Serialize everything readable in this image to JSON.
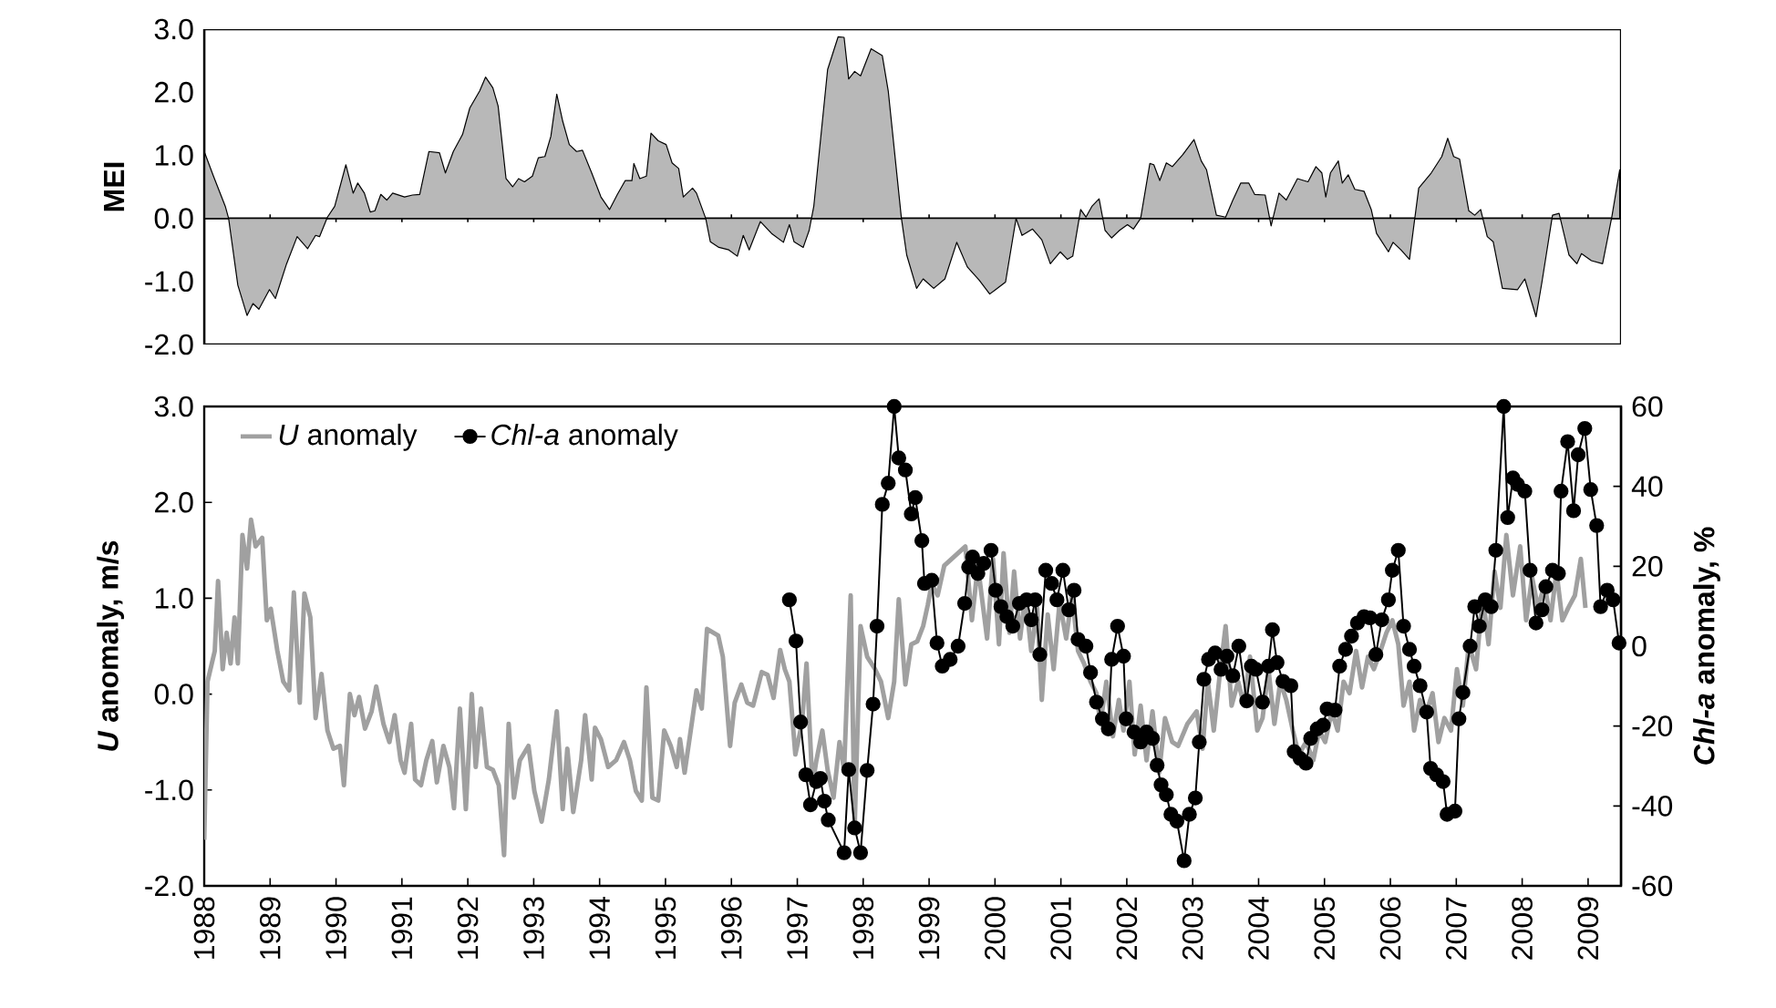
{
  "chart_data": [
    {
      "type": "area",
      "ylabel": "MEI",
      "color": "#b8b8b8",
      "xlim": [
        1988,
        2009.5
      ],
      "xticks": [
        1988,
        1989,
        1990,
        1991,
        1992,
        1993,
        1994,
        1995,
        1996,
        1997,
        1998,
        1999,
        2000,
        2001,
        2002,
        2003,
        2004,
        2005,
        2006,
        2007,
        2008,
        2009
      ],
      "tick_labels": "y",
      "ylim": [
        -2,
        3
      ],
      "yticks": [
        {
          "value": -2,
          "label": "-2.0"
        },
        {
          "value": -1,
          "label": "-1.0"
        },
        {
          "value": 0,
          "label": "0.0"
        },
        {
          "value": 1,
          "label": "1.0"
        },
        {
          "value": 2,
          "label": "2.0"
        },
        {
          "value": 3,
          "label": "3.0"
        }
      ],
      "x": [
        1988.0,
        1988.14,
        1988.32,
        1988.37,
        1988.51,
        1988.65,
        1988.74,
        1988.83,
        1988.99,
        1989.08,
        1989.25,
        1989.41,
        1989.57,
        1989.69,
        1989.75,
        1989.87,
        1989.98,
        1990.15,
        1990.26,
        1990.33,
        1990.43,
        1990.52,
        1990.59,
        1990.68,
        1990.77,
        1990.86,
        1991.04,
        1991.16,
        1991.27,
        1991.41,
        1991.57,
        1991.66,
        1991.78,
        1991.92,
        1992.03,
        1992.18,
        1992.27,
        1992.38,
        1992.46,
        1992.58,
        1992.68,
        1992.77,
        1992.86,
        1992.98,
        1993.07,
        1993.17,
        1993.26,
        1993.35,
        1993.44,
        1993.54,
        1993.65,
        1993.74,
        1993.88,
        1994.02,
        1994.15,
        1994.27,
        1994.39,
        1994.49,
        1994.52,
        1994.61,
        1994.71,
        1994.78,
        1994.89,
        1995.01,
        1995.1,
        1995.2,
        1995.27,
        1995.41,
        1995.47,
        1995.61,
        1995.68,
        1995.81,
        1995.96,
        1996.09,
        1996.18,
        1996.27,
        1996.44,
        1996.61,
        1996.79,
        1996.88,
        1996.95,
        1997.09,
        1997.18,
        1997.25,
        1997.46,
        1997.62,
        1997.71,
        1997.78,
        1997.87,
        1997.96,
        1998.12,
        1998.29,
        1998.38,
        1998.58,
        1998.66,
        1998.81,
        1998.91,
        1999.07,
        1999.24,
        1999.42,
        1999.58,
        1999.76,
        1999.92,
        2000.01,
        2000.16,
        2000.32,
        2000.41,
        2000.57,
        2000.71,
        2000.84,
        2000.99,
        2001.1,
        2001.18,
        2001.3,
        2001.38,
        2001.47,
        2001.58,
        2001.67,
        2001.77,
        2001.89,
        2002.01,
        2002.1,
        2002.21,
        2002.35,
        2002.41,
        2002.5,
        2002.6,
        2002.69,
        2002.85,
        2003.02,
        2003.13,
        2003.21,
        2003.36,
        2003.5,
        2003.61,
        2003.73,
        2003.85,
        2003.94,
        2004.1,
        2004.19,
        2004.31,
        2004.42,
        2004.59,
        2004.75,
        2004.87,
        2004.96,
        2005.02,
        2005.09,
        2005.21,
        2005.27,
        2005.36,
        2005.46,
        2005.6,
        2005.71,
        2005.79,
        2005.97,
        2006.04,
        2006.16,
        2006.29,
        2006.43,
        2006.62,
        2006.78,
        2006.87,
        2006.96,
        2007.05,
        2007.19,
        2007.28,
        2007.37,
        2007.47,
        2007.56,
        2007.7,
        2007.93,
        2008.04,
        2008.21,
        2008.3,
        2008.46,
        2008.56,
        2008.71,
        2008.83,
        2008.9,
        2009.05,
        2009.22,
        2009.36,
        2009.48
      ],
      "values": [
        1.06,
        0.67,
        0.19,
        0,
        -1.06,
        -1.54,
        -1.35,
        -1.44,
        -1.13,
        -1.27,
        -0.72,
        -0.29,
        -0.48,
        -0.27,
        -0.29,
        0.02,
        0.19,
        0.85,
        0.4,
        0.56,
        0.4,
        0.1,
        0.12,
        0.38,
        0.29,
        0.4,
        0.34,
        0.37,
        0.38,
        1.06,
        1.04,
        0.72,
        1.06,
        1.33,
        1.75,
        2.02,
        2.24,
        2.07,
        1.78,
        0.63,
        0.5,
        0.63,
        0.58,
        0.67,
        0.96,
        0.98,
        1.3,
        1.97,
        1.54,
        1.17,
        1.06,
        1.08,
        0.72,
        0.34,
        0.14,
        0.38,
        0.6,
        0.6,
        0.87,
        0.63,
        0.67,
        1.35,
        1.23,
        1.17,
        0.88,
        0.79,
        0.34,
        0.48,
        0.4,
        0,
        -0.37,
        -0.46,
        -0.5,
        -0.6,
        -0.27,
        -0.5,
        -0.05,
        -0.24,
        -0.38,
        -0.1,
        -0.37,
        -0.46,
        -0.19,
        0.19,
        2.36,
        2.88,
        2.87,
        2.21,
        2.33,
        2.26,
        2.69,
        2.58,
        2.02,
        0,
        -0.58,
        -1.11,
        -0.96,
        -1.11,
        -0.96,
        -0.38,
        -0.77,
        -0.98,
        -1.2,
        -1.13,
        -1.01,
        0,
        -0.27,
        -0.17,
        -0.34,
        -0.72,
        -0.53,
        -0.65,
        -0.6,
        0.14,
        0.02,
        0.19,
        0.31,
        -0.19,
        -0.31,
        -0.19,
        -0.1,
        -0.17,
        0,
        0.87,
        0.85,
        0.6,
        0.88,
        0.82,
        1.01,
        1.25,
        0.91,
        0.77,
        0.05,
        0.02,
        0.29,
        0.56,
        0.56,
        0.38,
        0.37,
        -0.12,
        0.4,
        0.29,
        0.63,
        0.58,
        0.82,
        0.72,
        0.34,
        0.72,
        0.91,
        0.56,
        0.69,
        0.46,
        0.43,
        0.14,
        -0.24,
        -0.53,
        -0.38,
        -0.5,
        -0.65,
        0.48,
        0.72,
        0.98,
        1.27,
        0.98,
        0.94,
        0.12,
        0.05,
        0.14,
        -0.29,
        -0.37,
        -1.11,
        -1.13,
        -0.96,
        -1.56,
        -1.01,
        0.05,
        0.08,
        -0.58,
        -0.72,
        -0.56,
        -0.67,
        -0.72,
        0.02,
        0.77
      ]
    },
    {
      "type": "line",
      "ylabel": "*U* anomaly, m/s",
      "y2label": "*Chl-a* anomaly, %",
      "xlim": [
        1988,
        2009.5
      ],
      "xticks": [
        1988,
        1989,
        1990,
        1991,
        1992,
        1993,
        1994,
        1995,
        1996,
        1997,
        1998,
        1999,
        2000,
        2001,
        2002,
        2003,
        2004,
        2005,
        2006,
        2007,
        2008,
        2009
      ],
      "ylim": [
        -2,
        3
      ],
      "yticks": [
        {
          "value": -2,
          "label": "-2.0"
        },
        {
          "value": -1,
          "label": "-1.0"
        },
        {
          "value": 0,
          "label": "0.0"
        },
        {
          "value": 1,
          "label": "1.0"
        },
        {
          "value": 2,
          "label": "2.0"
        },
        {
          "value": 3,
          "label": "3.0"
        }
      ],
      "y2lim": [
        -60,
        60
      ],
      "y2ticks": [
        -60,
        -40,
        -20,
        0,
        20,
        40,
        60
      ],
      "legend": "top left",
      "series": [
        {
          "name": "*U* anomaly",
          "color": "#a0a0a0",
          "marker": "none",
          "x": [
            1988.0,
            1988.05,
            1988.16,
            1988.21,
            1988.28,
            1988.34,
            1988.4,
            1988.46,
            1988.51,
            1988.58,
            1988.65,
            1988.71,
            1988.78,
            1988.88,
            1988.95,
            1989.01,
            1989.11,
            1989.2,
            1989.29,
            1989.36,
            1989.45,
            1989.52,
            1989.61,
            1989.69,
            1989.78,
            1989.87,
            1989.96,
            1990.06,
            1990.12,
            1990.21,
            1990.28,
            1990.35,
            1990.44,
            1990.54,
            1990.61,
            1990.72,
            1990.81,
            1990.89,
            1990.98,
            1991.04,
            1991.14,
            1991.2,
            1991.29,
            1991.37,
            1991.46,
            1991.53,
            1991.63,
            1991.72,
            1991.79,
            1991.88,
            1991.97,
            1992.06,
            1992.12,
            1992.2,
            1992.29,
            1992.38,
            1992.47,
            1992.55,
            1992.62,
            1992.7,
            1992.79,
            1992.92,
            1993.01,
            1993.12,
            1993.23,
            1993.35,
            1993.44,
            1993.51,
            1993.6,
            1993.72,
            1993.78,
            1993.88,
            1993.93,
            1994.02,
            1994.13,
            1994.25,
            1994.37,
            1994.46,
            1994.55,
            1994.64,
            1994.71,
            1994.8,
            1994.89,
            1994.98,
            1995.08,
            1995.17,
            1995.22,
            1995.29,
            1995.41,
            1995.47,
            1995.55,
            1995.63,
            1995.8,
            1995.87,
            1995.98,
            1996.05,
            1996.15,
            1996.24,
            1996.33,
            1996.46,
            1996.55,
            1996.64,
            1996.74,
            1996.81,
            1996.88,
            1996.97,
            1997.07,
            1997.14,
            1997.23,
            1997.29,
            1997.38,
            1997.46,
            1997.55,
            1997.64,
            1997.71,
            1997.81,
            1997.87,
            1997.96,
            1998.06,
            1998.18,
            1998.27,
            1998.38,
            1998.47,
            1998.54,
            1998.64,
            1998.73,
            1998.82,
            1998.91,
            1998.98,
            1999.04,
            1999.13,
            1999.23,
            1999.55,
            1999.65,
            1999.74,
            1999.88,
            1999.97,
            2000.06,
            2000.13,
            2000.22,
            2000.29,
            2000.38,
            2000.46,
            2000.55,
            2000.64,
            2000.71,
            2000.8,
            2000.89,
            2000.98,
            2001.08,
            2001.17,
            2001.26,
            2001.35,
            2001.45,
            2001.54,
            2001.6,
            2001.69,
            2001.79,
            2001.88,
            2001.95,
            2002.04,
            2002.12,
            2002.21,
            2002.3,
            2002.39,
            2002.49,
            2002.58,
            2002.69,
            2002.78,
            2002.92,
            2003.06,
            2003.15,
            2003.23,
            2003.32,
            2003.41,
            2003.5,
            2003.59,
            2003.69,
            2003.78,
            2003.87,
            2003.98,
            2004.06,
            2004.15,
            2004.24,
            2004.33,
            2004.42,
            2004.52,
            2004.61,
            2004.72,
            2004.83,
            2004.92,
            2005.01,
            2005.11,
            2005.2,
            2005.29,
            2005.38,
            2005.48,
            2005.57,
            2005.66,
            2005.75,
            2005.85,
            2005.94,
            2006.03,
            2006.12,
            2006.2,
            2006.29,
            2006.36,
            2006.45,
            2006.55,
            2006.64,
            2006.73,
            2006.82,
            2006.92,
            2007.01,
            2007.1,
            2007.19,
            2007.3,
            2007.4,
            2007.49,
            2007.58,
            2007.67,
            2007.76,
            2007.86,
            2007.97,
            2008.06,
            2008.15,
            2008.24,
            2008.34,
            2008.43,
            2008.52,
            2008.61,
            2008.7,
            2008.8,
            2008.89,
            2008.96
          ],
          "values": [
            -1.52,
            0.13,
            0.45,
            1.18,
            0.26,
            0.64,
            0.32,
            0.8,
            0.32,
            1.66,
            1.31,
            1.82,
            1.54,
            1.63,
            0.77,
            0.89,
            0.45,
            0.13,
            0.04,
            1.06,
            -0.09,
            1.05,
            0.8,
            -0.25,
            0.21,
            -0.38,
            -0.57,
            -0.54,
            -0.95,
            0,
            -0.22,
            -0.03,
            -0.36,
            -0.18,
            0.08,
            -0.31,
            -0.5,
            -0.22,
            -0.69,
            -0.82,
            -0.31,
            -0.89,
            -0.95,
            -0.69,
            -0.49,
            -0.92,
            -0.54,
            -0.76,
            -1.19,
            -0.15,
            -1.2,
            0,
            -0.76,
            -0.15,
            -0.76,
            -0.79,
            -0.95,
            -1.68,
            -0.31,
            -1.08,
            -0.69,
            -0.54,
            -1.01,
            -1.33,
            -0.89,
            -0.18,
            -1.2,
            -0.57,
            -1.23,
            -0.69,
            -0.22,
            -0.89,
            -0.35,
            -0.47,
            -0.76,
            -0.69,
            -0.5,
            -0.69,
            -1.01,
            -1.11,
            0.07,
            -1.08,
            -1.11,
            -0.38,
            -0.54,
            -0.76,
            -0.47,
            -0.82,
            -0.25,
            0.04,
            -0.15,
            0.68,
            0.61,
            0.39,
            -0.54,
            -0.09,
            0.1,
            -0.09,
            -0.12,
            0.23,
            0.2,
            -0.04,
            0.46,
            0.26,
            0.13,
            -0.63,
            -0.31,
            0.32,
            -0.95,
            -0.69,
            -0.38,
            -0.79,
            -1.08,
            -0.5,
            -0.79,
            1.03,
            -1.39,
            0.71,
            0.39,
            0.26,
            0.13,
            -0.25,
            0.13,
            0.99,
            0.1,
            0.52,
            0.55,
            0.71,
            0.93,
            1.15,
            1.03,
            1.34,
            1.54,
            0.77,
            1.34,
            0.58,
            1.41,
            0.52,
            1.47,
            0.64,
            1.28,
            0.58,
            1.03,
            0.45,
            0.9,
            -0.06,
            0.83,
            0.26,
            0.96,
            0.58,
            1.03,
            0.45,
            0.32,
            0.13,
            0.01,
            -0.31,
            0.13,
            -0.44,
            -0.06,
            -0.38,
            0.13,
            -0.63,
            -0.12,
            -0.69,
            -0.18,
            -0.82,
            -0.25,
            -0.5,
            -0.54,
            -0.31,
            -0.18,
            -0.57,
            0.13,
            -0.38,
            0.2,
            0.71,
            -0.12,
            0.13,
            -0.12,
            0.39,
            -0.38,
            -0.25,
            0.26,
            -0.31,
            0.13,
            -0.06,
            -0.38,
            -0.63,
            -0.5,
            -0.69,
            -0.38,
            -0.5,
            -0.18,
            -0.38,
            0.13,
            0.01,
            0.45,
            0.07,
            0.39,
            0.26,
            0.45,
            0.64,
            0.77,
            0.52,
            -0.12,
            0.13,
            -0.38,
            -0.06,
            -0.18,
            0.01,
            -0.5,
            -0.25,
            -0.38,
            0.26,
            -0.12,
            0.52,
            0.26,
            1.03,
            0.52,
            1.28,
            0.9,
            1.66,
            1.03,
            1.54,
            0.77,
            1.22,
            0.9,
            1.15,
            0.77,
            1.28,
            0.77,
            0.9,
            1.03,
            1.41,
            0.9
          ]
        },
        {
          "name": "*Chl-a* anomaly",
          "color": "#000000",
          "marker": "circle",
          "axis": "y2",
          "x": [
            1996.88,
            1996.98,
            1997.05,
            1997.13,
            1997.2,
            1997.29,
            1997.35,
            1997.41,
            1997.47,
            1997.71,
            1997.78,
            1997.87,
            1997.96,
            1998.06,
            1998.15,
            1998.21,
            1998.29,
            1998.38,
            1998.47,
            1998.54,
            1998.64,
            1998.73,
            1998.79,
            1998.89,
            1998.93,
            1999.04,
            1999.12,
            1999.2,
            1999.32,
            1999.44,
            1999.54,
            1999.6,
            1999.66,
            1999.74,
            1999.83,
            1999.94,
            2000.01,
            2000.09,
            2000.18,
            2000.27,
            2000.37,
            2000.48,
            2000.55,
            2000.61,
            2000.68,
            2000.77,
            2000.86,
            2000.94,
            2001.03,
            2001.12,
            2001.2,
            2001.26,
            2001.38,
            2001.45,
            2001.54,
            2001.63,
            2001.72,
            2001.77,
            2001.86,
            2001.95,
            2001.99,
            2002.11,
            2002.21,
            2002.3,
            2002.39,
            2002.46,
            2002.52,
            2002.6,
            2002.67,
            2002.76,
            2002.87,
            2002.95,
            2003.04,
            2003.1,
            2003.17,
            2003.24,
            2003.34,
            2003.43,
            2003.52,
            2003.61,
            2003.7,
            2003.82,
            2003.89,
            2003.96,
            2004.06,
            2004.15,
            2004.21,
            2004.28,
            2004.37,
            2004.49,
            2004.54,
            2004.63,
            2004.72,
            2004.79,
            2004.89,
            2004.98,
            2005.04,
            2005.16,
            2005.23,
            2005.32,
            2005.41,
            2005.5,
            2005.6,
            2005.69,
            2005.78,
            2005.87,
            2005.97,
            2006.03,
            2006.12,
            2006.2,
            2006.29,
            2006.36,
            2006.45,
            2006.55,
            2006.61,
            2006.7,
            2006.8,
            2006.86,
            2006.98,
            2007.04,
            2007.1,
            2007.21,
            2007.28,
            2007.35,
            2007.44,
            2007.53,
            2007.6,
            2007.72,
            2007.78,
            2007.86,
            2007.93,
            2008.04,
            2008.12,
            2008.21,
            2008.3,
            2008.36,
            2008.46,
            2008.55,
            2008.59,
            2008.69,
            2008.78,
            2008.85,
            2008.95,
            2009.04,
            2009.13,
            2009.19,
            2009.29,
            2009.38,
            2009.47
          ],
          "values": [
            11.6,
            1.3,
            -19,
            -32.2,
            -39.7,
            -33.9,
            -33.1,
            -38.8,
            -43.5,
            -51.7,
            -30.9,
            -45.5,
            -51.7,
            -31.1,
            -14.5,
            5,
            35.5,
            40.8,
            60,
            47.1,
            44.1,
            33.1,
            37.2,
            26.4,
            15.7,
            16.5,
            0.8,
            -5,
            -3.3,
            0,
            10.7,
            19.8,
            22.3,
            18.2,
            20.7,
            24,
            14,
            9.9,
            7.4,
            5,
            10.7,
            11.6,
            6.6,
            11.6,
            -2.1,
            19,
            15.7,
            11.6,
            19,
            9.1,
            14,
            1.7,
            0,
            -6.6,
            -14,
            -18.2,
            -20.7,
            -3.3,
            5,
            -2.5,
            -18.2,
            -21.5,
            -24,
            -21.5,
            -23.1,
            -29.8,
            -34.7,
            -37.2,
            -42.1,
            -43.8,
            -53.7,
            -42.1,
            -38,
            -24,
            -8.3,
            -3.3,
            -1.7,
            -5.8,
            -2.5,
            -7.4,
            0,
            -13.7,
            -5,
            -5.8,
            -14,
            -5,
            4.1,
            -4.1,
            -8.8,
            -9.9,
            -26.4,
            -28.1,
            -29.3,
            -23.1,
            -20.7,
            -19.8,
            -15.7,
            -16,
            -5,
            -0.8,
            2.5,
            5.8,
            7.4,
            7.1,
            -2.1,
            6.6,
            11.6,
            19,
            24,
            5,
            -0.8,
            -5,
            -9.9,
            -16.5,
            -30.6,
            -32.2,
            -33.9,
            -42.1,
            -41.3,
            -18.2,
            -11.6,
            0,
            9.9,
            5,
            11.6,
            9.9,
            24,
            60,
            32.2,
            42.1,
            40.5,
            38.8,
            19,
            5.8,
            9.1,
            14.9,
            19,
            18.2,
            38.8,
            51.2,
            33.9,
            47.9,
            54.5,
            39.2,
            30.2,
            9.9,
            14,
            11.6,
            0.8
          ]
        }
      ]
    }
  ]
}
